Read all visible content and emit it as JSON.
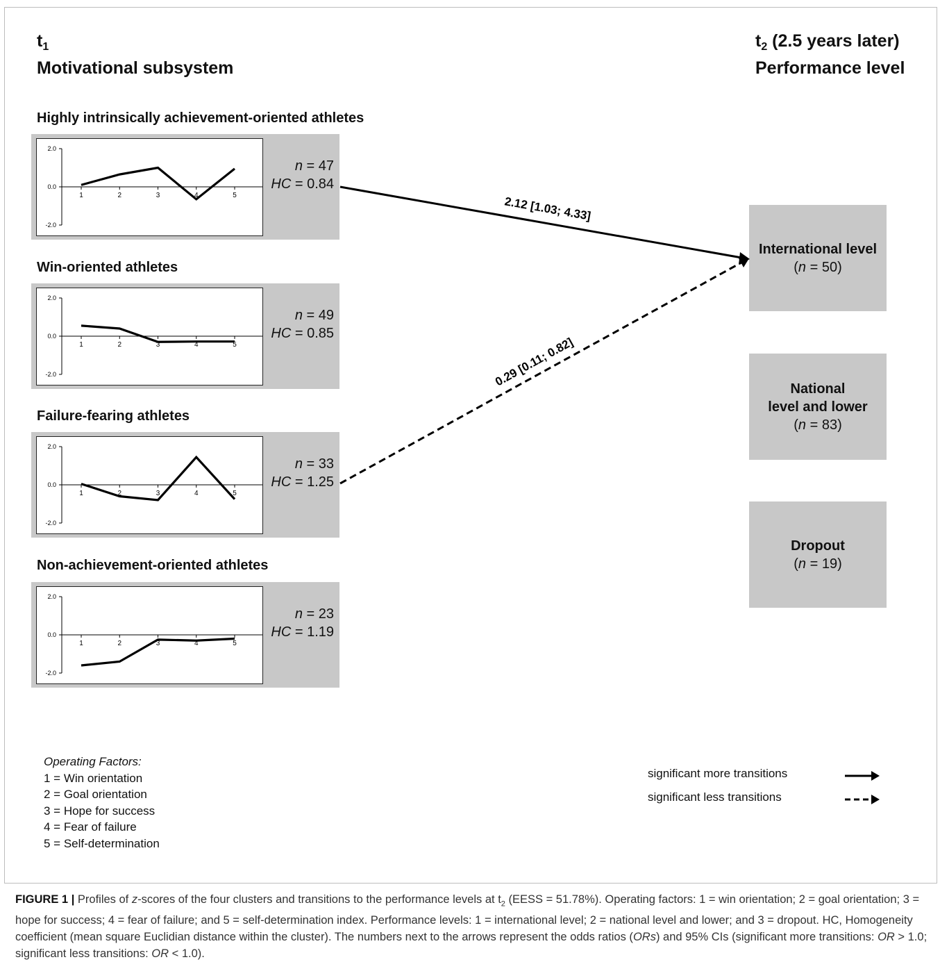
{
  "header_left": {
    "time": "t",
    "time_sub": "1",
    "subtitle": "Motivational subsystem"
  },
  "header_right": {
    "time": "t",
    "time_sub": "2",
    "time_note": " (2.5 years later)",
    "subtitle": "Performance level"
  },
  "clusters": [
    {
      "title": "Highly intrinsically achievement-oriented athletes",
      "n_label": "n",
      "n_value": " = 47",
      "hc_label": "HC",
      "hc_value": " = 0.84",
      "chart_data": {
        "type": "line",
        "x": [
          1,
          2,
          3,
          4,
          5
        ],
        "y": [
          0.1,
          0.65,
          1.0,
          -0.65,
          0.95
        ],
        "ylim": [
          -2.0,
          2.0
        ],
        "yticks": [
          "2.0",
          "0.0",
          "-2.0"
        ],
        "xticks": [
          "1",
          "2",
          "3",
          "4",
          "5"
        ]
      }
    },
    {
      "title": "Win-oriented athletes",
      "n_label": "n",
      "n_value": "  = 49",
      "hc_label": "HC",
      "hc_value": " = 0.85",
      "chart_data": {
        "type": "line",
        "x": [
          1,
          2,
          3,
          4,
          5
        ],
        "y": [
          0.55,
          0.4,
          -0.3,
          -0.28,
          -0.28
        ],
        "ylim": [
          -2.0,
          2.0
        ],
        "yticks": [
          "2.0",
          "0.0",
          "-2.0"
        ],
        "xticks": [
          "1",
          "2",
          "3",
          "4",
          "5"
        ]
      }
    },
    {
      "title": "Failure-fearing athletes",
      "n_label": "n",
      "n_value": " = 33",
      "hc_label": "HC",
      "hc_value": " = 1.25",
      "chart_data": {
        "type": "line",
        "x": [
          1,
          2,
          3,
          4,
          5
        ],
        "y": [
          0.05,
          -0.6,
          -0.8,
          1.45,
          -0.75
        ],
        "ylim": [
          -2.0,
          2.0
        ],
        "yticks": [
          "2.0",
          "0.0",
          "-2.0"
        ],
        "xticks": [
          "1",
          "2",
          "3",
          "4",
          "5"
        ]
      }
    },
    {
      "title": "Non-achievement-oriented athletes",
      "n_label": "n",
      "n_value": " = 23",
      "hc_label": "HC",
      "hc_value": " = 1.19",
      "chart_data": {
        "type": "line",
        "x": [
          1,
          2,
          3,
          4,
          5
        ],
        "y": [
          -1.6,
          -1.4,
          -0.25,
          -0.3,
          -0.2
        ],
        "ylim": [
          -2.0,
          2.0
        ],
        "yticks": [
          "2.0",
          "0.0",
          "-2.0"
        ],
        "xticks": [
          "1",
          "2",
          "3",
          "4",
          "5"
        ]
      }
    }
  ],
  "levels": [
    {
      "name": "International level",
      "n_open": "(",
      "n_label": "n",
      "n_value": " = 50)"
    },
    {
      "name": "National\nlevel and lower",
      "n_open": "(",
      "n_label": "n",
      "n_value": " = 83)"
    },
    {
      "name": "Dropout",
      "n_open": "(",
      "n_label": "n",
      "n_value": " = 19)"
    }
  ],
  "transitions": [
    {
      "from": "Highly intrinsically achievement-oriented athletes",
      "to": "International level",
      "label": "2.12 [1.03; 4.33]",
      "style": "solid"
    },
    {
      "from": "Failure-fearing athletes",
      "to": "International level",
      "label": "0.29 [0.11; 0.82]",
      "style": "dashed"
    }
  ],
  "legend_factors": {
    "title": "Operating Factors:",
    "items": [
      "1 = Win orientation",
      "2 = Goal orientation",
      "3 = Hope  for success",
      "4 = Fear of failure",
      "5 = Self-determination"
    ]
  },
  "legend_arrows": {
    "more": "significant more transitions",
    "less": "significant less transitions"
  },
  "caption": {
    "label": "FIGURE 1",
    "sep": "  |  ",
    "p1": "Profiles of ",
    "z": "z",
    "p2": "-scores of the four clusters and transitions to the performance levels at t",
    "t_sub": "2",
    "p3": " (EESS = 51.78%). Operating factors: 1 = win orientation; 2 = goal orientation; 3 = hope for success; 4 = fear of failure; and 5 = self-determination index. Performance levels: 1 = international level; 2 = national level and lower; and 3 = dropout. HC, Homogeneity coefficient (mean square Euclidian distance within the cluster). The numbers next to the arrows represent the odds ratios (",
    "ors": "ORs",
    "p4": ") and 95% CIs (significant more transitions: ",
    "or1": "OR",
    "p5": " > 1.0; significant less transitions: ",
    "or2": "OR",
    "p6": " < 1.0)."
  }
}
